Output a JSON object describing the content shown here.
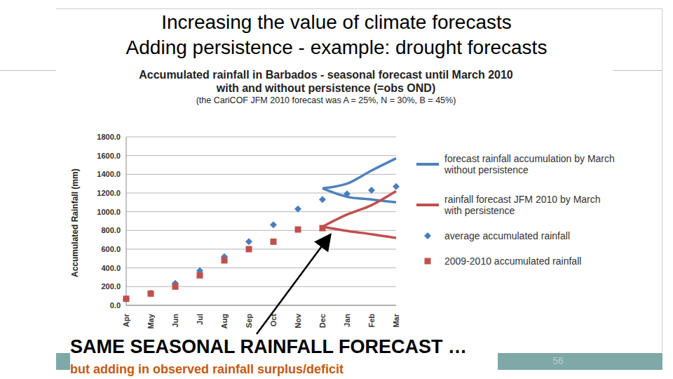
{
  "slide": {
    "title": "Increasing the value of climate forecasts",
    "subtitle": "Adding persistence - example: drought forecasts",
    "annotations": [
      "SAME SEASONAL RAINFALL FORECAST …",
      "but adding in observed rainfall surplus/deficit"
    ],
    "page": 56
  },
  "chart_data": {
    "type": "line",
    "title": "Accumulated rainfall in Barbados - seasonal forecast until March 2010 with and without persistence (=obs OND)",
    "subtitle": "(the CariCOF JFM 2010 forecast was A = 25%, N = 30%, B = 45%)",
    "y_label": "Accumulated Rainfall (mm)",
    "categories": [
      "Apr",
      "May",
      "Jun",
      "Jul",
      "Aug",
      "Sep",
      "Oct",
      "Nov",
      "Dec",
      "Jan",
      "Feb",
      "Mar"
    ],
    "series": [
      {
        "name": "forecast rainfall accumulation by March without persistence",
        "color": "#4f81bd",
        "type": "line",
        "values": [
          null,
          null,
          null,
          null,
          null,
          null,
          null,
          null,
          1250,
          1300,
          1440,
          1570
        ],
        "lower": [
          null,
          null,
          null,
          null,
          null,
          null,
          null,
          null,
          1250,
          1160,
          1130,
          1100
        ]
      },
      {
        "name": "rainfall forecast JFM 2010 by March with persistence",
        "color": "#c0504d",
        "type": "line",
        "values": [
          null,
          null,
          null,
          null,
          null,
          null,
          null,
          null,
          840,
          970,
          1070,
          1220
        ],
        "lower": [
          null,
          null,
          null,
          null,
          null,
          null,
          null,
          null,
          840,
          795,
          760,
          720
        ]
      },
      {
        "name": "average accumulated rainfall",
        "color": "#4a7ebb",
        "type": "scatter",
        "marker": "diamond",
        "values": [
          68,
          130,
          235,
          370,
          520,
          680,
          860,
          1030,
          1130,
          1190,
          1230,
          1270
        ]
      },
      {
        "name": "2009-2010 accumulated rainfall",
        "color": "#c0504d",
        "type": "scatter",
        "marker": "square",
        "values": [
          70,
          125,
          200,
          320,
          480,
          600,
          680,
          810,
          825,
          null,
          null,
          null
        ]
      }
    ],
    "ylim": [
      0,
      1800
    ],
    "yticks": [
      {
        "value": 0,
        "label": "0.0"
      },
      {
        "value": 200,
        "label": "200.0"
      },
      {
        "value": 400,
        "label": "400.0"
      },
      {
        "value": 600,
        "label": "600.0"
      },
      {
        "value": 800,
        "label": "800.0"
      },
      {
        "value": 1000,
        "label": "1000.0"
      },
      {
        "value": 1200,
        "label": "1200.0"
      },
      {
        "value": 1400,
        "label": "1400.0"
      },
      {
        "value": 1600,
        "label": "1600.0"
      },
      {
        "value": 1800,
        "label": "1800.0"
      }
    ],
    "grid": true,
    "legend": "right"
  }
}
